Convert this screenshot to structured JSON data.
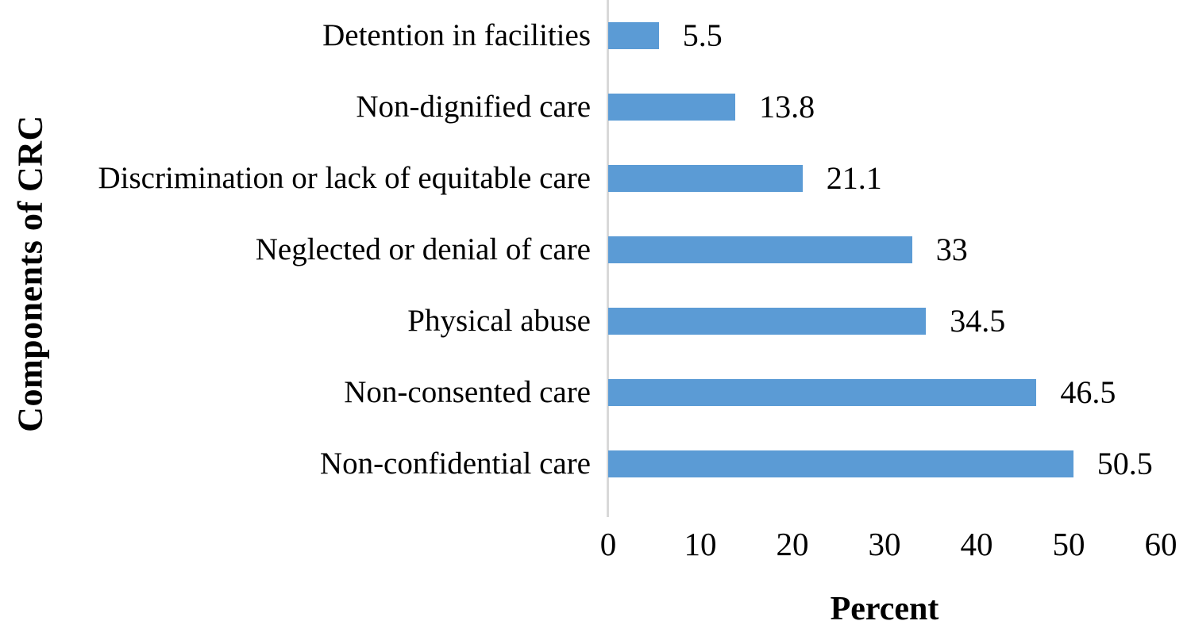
{
  "chart_data": {
    "type": "bar",
    "orientation": "horizontal",
    "title": "",
    "xlabel": "Percent",
    "ylabel": "Components of CRC",
    "xlim": [
      0,
      60
    ],
    "xticks": [
      "0",
      "10",
      "20",
      "30",
      "40",
      "50",
      "60"
    ],
    "xtick_values": [
      0,
      10,
      20,
      30,
      40,
      50,
      60
    ],
    "grid": false,
    "legend": false,
    "bar_color": "#5B9BD5",
    "axis_line_color": "#D9D9D9",
    "text_color": "#000000",
    "categories": [
      "Detention in facilities",
      "Non-dignified care",
      "Discrimination or lack of equitable care",
      "Neglected or denial of care",
      "Physical abuse",
      "Non-consented care",
      "Non-confidential care"
    ],
    "values": [
      5.5,
      13.8,
      21.1,
      33,
      34.5,
      46.5,
      50.5
    ],
    "value_labels": [
      "5.5",
      "13.8",
      "21.1",
      "33",
      "34.5",
      "46.5",
      "50.5"
    ]
  }
}
